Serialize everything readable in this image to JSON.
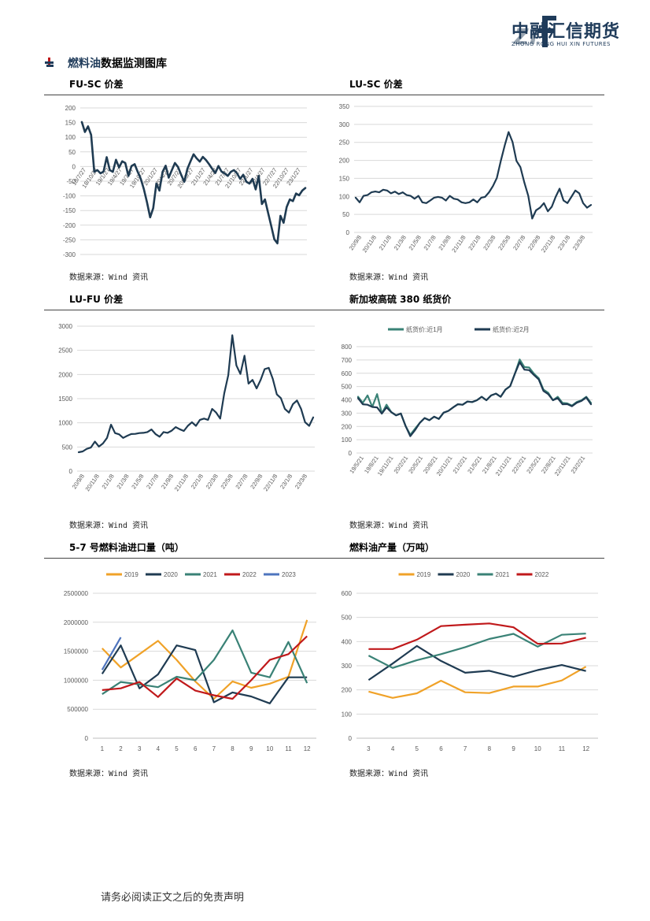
{
  "header": {
    "logo_mark": "znf",
    "company_cn": "中融汇信期货",
    "company_en": "ZHONG RONG HUI XIN FUTURES"
  },
  "section": {
    "title_highlight": "燃料油",
    "title_rest": "数据监测图库"
  },
  "source_label": "数据来源：Wind 资讯",
  "footer": "请务必阅读正文之后的免责声明",
  "colors": {
    "navy": "#1f3b52",
    "teal": "#3a8276",
    "orange": "#f0a228",
    "red": "#c0191b",
    "blue": "#4e74be",
    "grid": "#d9d9d9"
  },
  "chart_data": [
    {
      "id": "fu_sc",
      "type": "line",
      "title": "FU-SC 价差",
      "ylim": [
        -300,
        200
      ],
      "yticks": [
        200,
        150,
        100,
        50,
        0,
        -50,
        -100,
        -150,
        -200,
        -250,
        -300
      ],
      "xtick_labels": [
        "18/7/27",
        "18/10/27",
        "19/1/27",
        "19/4/27",
        "19/7/27",
        "19/10/27",
        "20/1/27",
        "20/4/27",
        "20/7/27",
        "20/10/27",
        "21/1/27",
        "21/4/27",
        "21/7/27",
        "21/10/27",
        "22/1/27",
        "22/4/27",
        "22/7/27",
        "22/10/27",
        "23/1/27"
      ],
      "series": [
        {
          "name": "",
          "color": "#1f3b52",
          "values": [
            150,
            120,
            135,
            110,
            -20,
            -10,
            -25,
            -15,
            30,
            -10,
            -20,
            25,
            -5,
            20,
            10,
            -30,
            0,
            10,
            -20,
            -40,
            -80,
            -120,
            -175,
            -140,
            -60,
            -80,
            -20,
            5,
            -40,
            -10,
            10,
            0,
            -30,
            -50,
            -10,
            20,
            40,
            30,
            15,
            35,
            20,
            10,
            -10,
            -20,
            0,
            -15,
            -25,
            -30,
            -20,
            -10,
            -25,
            -40,
            -30,
            -50,
            -60,
            -40,
            -80,
            -30,
            -130,
            -110,
            -160,
            -200,
            -250,
            -260,
            -170,
            -190,
            -140,
            -110,
            -120,
            -90,
            -100,
            -80,
            -75
          ]
        }
      ]
    },
    {
      "id": "lu_sc",
      "type": "line",
      "title": "LU-SC 价差",
      "ylim": [
        0,
        350
      ],
      "yticks": [
        350,
        300,
        250,
        200,
        150,
        100,
        50,
        0
      ],
      "xtick_labels": [
        "20/9/8",
        "20/11/8",
        "21/1/8",
        "21/3/8",
        "21/5/8",
        "21/7/8",
        "21/9/8",
        "21/11/8",
        "22/1/8",
        "22/3/8",
        "22/5/8",
        "22/7/8",
        "22/9/8",
        "22/11/8",
        "23/1/8",
        "23/3/8"
      ],
      "series": [
        {
          "name": "",
          "color": "#1f3b52",
          "values": [
            95,
            85,
            100,
            105,
            110,
            115,
            110,
            120,
            115,
            110,
            112,
            108,
            110,
            105,
            100,
            95,
            100,
            85,
            80,
            90,
            95,
            100,
            95,
            90,
            100,
            95,
            90,
            85,
            80,
            85,
            90,
            85,
            95,
            100,
            110,
            130,
            150,
            200,
            240,
            280,
            250,
            200,
            180,
            140,
            100,
            40,
            60,
            70,
            80,
            60,
            70,
            100,
            120,
            90,
            80,
            100,
            115,
            110,
            80,
            70,
            75
          ]
        }
      ]
    },
    {
      "id": "lu_fu",
      "type": "line",
      "title": "LU-FU 价差",
      "ylim": [
        0,
        3000
      ],
      "yticks": [
        3000,
        2500,
        2000,
        1500,
        1000,
        500,
        0
      ],
      "xtick_labels": [
        "20/9/8",
        "20/11/8",
        "21/1/8",
        "21/3/8",
        "21/5/8",
        "21/7/8",
        "21/9/8",
        "21/11/8",
        "22/1/8",
        "22/3/8",
        "22/5/8",
        "22/7/8",
        "22/9/8",
        "22/11/8",
        "23/1/8",
        "23/3/8"
      ],
      "series": [
        {
          "name": "",
          "color": "#1f3b52",
          "values": [
            380,
            420,
            450,
            500,
            600,
            520,
            560,
            700,
            950,
            800,
            750,
            700,
            720,
            780,
            760,
            800,
            780,
            820,
            850,
            780,
            700,
            820,
            780,
            850,
            900,
            880,
            820,
            950,
            1000,
            950,
            1050,
            1100,
            1050,
            1300,
            1200,
            1100,
            1600,
            2000,
            2800,
            2200,
            2000,
            2400,
            1800,
            1900,
            1700,
            1900,
            2100,
            2150,
            1900,
            1600,
            1500,
            1300,
            1200,
            1400,
            1450,
            1300,
            1000,
            950,
            1100
          ]
        }
      ]
    },
    {
      "id": "sg380",
      "type": "line",
      "title": "新加坡高硫 380 纸货价",
      "ylim": [
        0,
        800
      ],
      "yticks": [
        800,
        700,
        600,
        500,
        400,
        300,
        200,
        100,
        0
      ],
      "xtick_labels": [
        "19/5/21",
        "19/8/21",
        "19/11/21",
        "20/2/21",
        "20/5/21",
        "20/8/21",
        "20/11/21",
        "21/2/21",
        "21/5/21",
        "21/8/21",
        "21/11/21",
        "22/2/21",
        "22/5/21",
        "22/8/21",
        "22/11/21",
        "23/2/21"
      ],
      "series": [
        {
          "name": "纸货价:近1月",
          "color": "#3a8276",
          "values": [
            420,
            380,
            430,
            350,
            440,
            300,
            360,
            310,
            280,
            300,
            200,
            140,
            180,
            230,
            260,
            250,
            270,
            260,
            300,
            320,
            340,
            370,
            360,
            390,
            380,
            400,
            420,
            400,
            430,
            450,
            420,
            480,
            500,
            600,
            700,
            650,
            640,
            600,
            560,
            480,
            450,
            400,
            420,
            380,
            370,
            360,
            380,
            400,
            420,
            380
          ]
        },
        {
          "name": "纸货价:近2月",
          "color": "#1f3b52",
          "values": [
            410,
            370,
            360,
            350,
            340,
            300,
            340,
            310,
            280,
            300,
            200,
            130,
            170,
            230,
            260,
            250,
            270,
            260,
            300,
            320,
            340,
            370,
            360,
            390,
            380,
            400,
            420,
            400,
            430,
            450,
            420,
            480,
            500,
            600,
            680,
            630,
            620,
            590,
            550,
            470,
            440,
            400,
            410,
            370,
            365,
            355,
            375,
            395,
            415,
            370
          ]
        }
      ]
    },
    {
      "id": "imports",
      "type": "line",
      "title": "5-7 号燃料油进口量（吨）",
      "categories": [
        "1",
        "2",
        "3",
        "4",
        "5",
        "6",
        "7",
        "8",
        "9",
        "10",
        "11",
        "12"
      ],
      "ylim": [
        0,
        2500000
      ],
      "yticks": [
        2500000,
        2000000,
        1500000,
        1000000,
        500000,
        0
      ],
      "series": [
        {
          "name": "2019",
          "color": "#f0a228",
          "values": [
            1550000,
            1220000,
            1450000,
            1680000,
            1350000,
            980000,
            680000,
            980000,
            870000,
            940000,
            1060000,
            2040000
          ]
        },
        {
          "name": "2020",
          "color": "#1f3b52",
          "values": [
            1110000,
            1600000,
            860000,
            1100000,
            1600000,
            1520000,
            620000,
            790000,
            720000,
            600000,
            1050000,
            1050000
          ]
        },
        {
          "name": "2021",
          "color": "#3a8276",
          "values": [
            760000,
            970000,
            930000,
            880000,
            1060000,
            1000000,
            1350000,
            1860000,
            1130000,
            1050000,
            1660000,
            950000
          ]
        },
        {
          "name": "2022",
          "color": "#c0191b",
          "values": [
            830000,
            860000,
            970000,
            710000,
            1030000,
            820000,
            740000,
            680000,
            1000000,
            1350000,
            1450000,
            1760000
          ]
        },
        {
          "name": "2023",
          "color": "#4e74be",
          "values": [
            1180000,
            1740000,
            null,
            null,
            null,
            null,
            null,
            null,
            null,
            null,
            null,
            null
          ]
        }
      ]
    },
    {
      "id": "output",
      "type": "line",
      "title": "燃料油产量（万吨）",
      "categories": [
        "3",
        "4",
        "5",
        "6",
        "7",
        "8",
        "9",
        "10",
        "11",
        "12"
      ],
      "ylim": [
        0,
        600
      ],
      "yticks": [
        600,
        500,
        400,
        300,
        200,
        100,
        0
      ],
      "series": [
        {
          "name": "2019",
          "color": "#f0a228",
          "values": [
            193,
            167,
            186,
            238,
            190,
            187,
            214,
            214,
            239,
            296
          ]
        },
        {
          "name": "2020",
          "color": "#1f3b52",
          "values": [
            241,
            309,
            382,
            320,
            271,
            279,
            254,
            282,
            303,
            278
          ]
        },
        {
          "name": "2021",
          "color": "#3a8276",
          "values": [
            342,
            291,
            323,
            348,
            377,
            411,
            432,
            379,
            428,
            433
          ]
        },
        {
          "name": "2022",
          "color": "#c0191b",
          "values": [
            369,
            369,
            408,
            464,
            470,
            475,
            459,
            391,
            392,
            416
          ]
        }
      ]
    }
  ]
}
